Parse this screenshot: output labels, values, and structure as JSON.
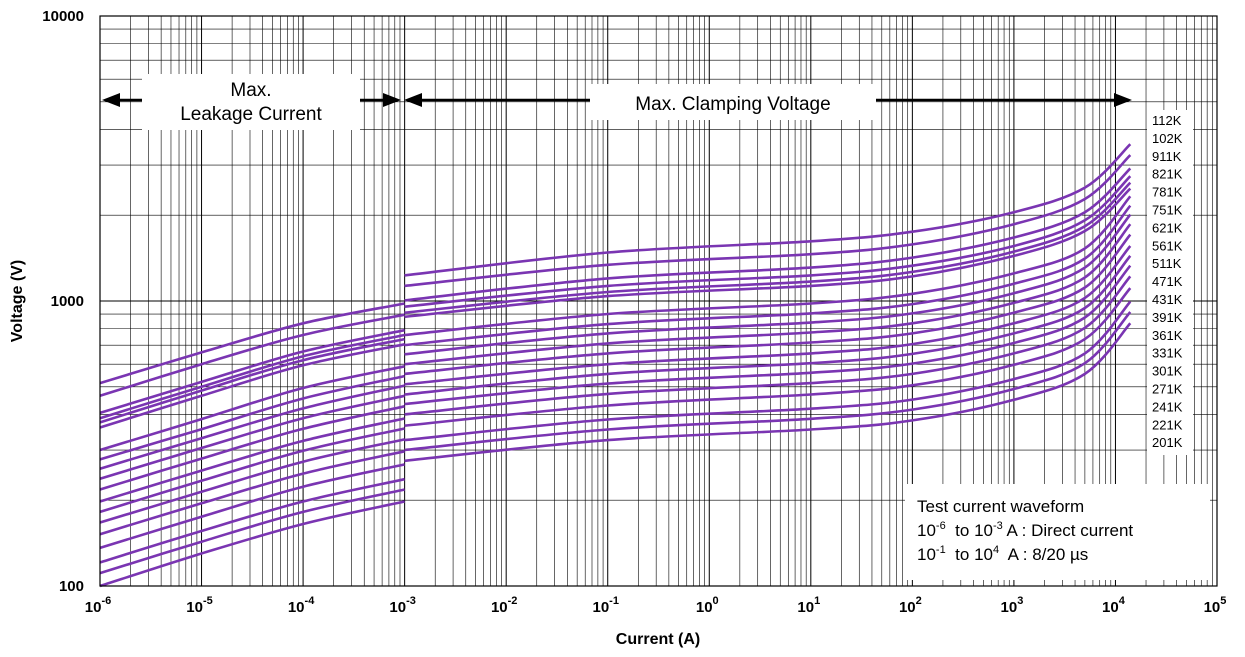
{
  "chart_data": {
    "type": "line",
    "xlabel": "Current (A)",
    "ylabel": "Voltage  (V)",
    "x_scale": "log",
    "y_scale": "log",
    "xlim": [
      1e-06,
      100000
    ],
    "ylim": [
      100,
      10000
    ],
    "grid": true,
    "x_ticks": [
      {
        "base": "10",
        "exp": "-6"
      },
      {
        "base": "10",
        "exp": "-5"
      },
      {
        "base": "10",
        "exp": "-4"
      },
      {
        "base": "10",
        "exp": "-3"
      },
      {
        "base": "10",
        "exp": "-2"
      },
      {
        "base": "10",
        "exp": "-1"
      },
      {
        "base": "10",
        "exp": "0"
      },
      {
        "base": "10",
        "exp": "1"
      },
      {
        "base": "10",
        "exp": "2"
      },
      {
        "base": "10",
        "exp": "3"
      },
      {
        "base": "10",
        "exp": "4"
      },
      {
        "base": "10",
        "exp": "5"
      }
    ],
    "y_ticks": [
      "100",
      "1000",
      "10000"
    ],
    "line_color": "#7a35b2",
    "annotations": {
      "leakage": [
        "Max.",
        "Leakage Current"
      ],
      "clamping": "Max. Clamping Voltage"
    },
    "info_box": {
      "title": "Test current waveform",
      "line1": {
        "a_base": "10",
        "a_exp": "-6",
        "mid": "  to ",
        "b_base": "10",
        "b_exp": "-3",
        "rest": " A : Direct current"
      },
      "line2": {
        "a_base": "10",
        "a_exp": "-1",
        "mid": "  to ",
        "b_base": "10",
        "b_exp": "4",
        "rest": "  A : 8/20 µs"
      }
    },
    "series_labels": [
      "112K",
      "102K",
      "911K",
      "821K",
      "781K",
      "751K",
      "621K",
      "561K",
      "511K",
      "471K",
      "431K",
      "391K",
      "361K",
      "331K",
      "301K",
      "271K",
      "241K",
      "221K",
      "201K"
    ],
    "series": [
      {
        "name": "112K",
        "leakage": [
          [
            1e-06,
            515
          ],
          [
            1e-05,
            660
          ],
          [
            0.0001,
            835
          ],
          [
            0.001,
            980
          ]
        ],
        "clamping": [
          [
            0.001,
            1230
          ],
          [
            0.1,
            1480
          ],
          [
            10,
            1620
          ],
          [
            100,
            1750
          ],
          [
            1000,
            2050
          ],
          [
            5000,
            2500
          ],
          [
            14000,
            3550
          ]
        ]
      },
      {
        "name": "102K",
        "leakage": [
          [
            1e-06,
            465
          ],
          [
            1e-05,
            600
          ],
          [
            0.0001,
            760
          ],
          [
            0.001,
            895
          ]
        ],
        "clamping": [
          [
            0.001,
            1130
          ],
          [
            0.1,
            1340
          ],
          [
            10,
            1460
          ],
          [
            100,
            1580
          ],
          [
            1000,
            1860
          ],
          [
            5000,
            2280
          ],
          [
            14000,
            3250
          ]
        ]
      },
      {
        "name": "911K",
        "leakage": [
          [
            1e-06,
            405
          ],
          [
            1e-05,
            520
          ],
          [
            0.0001,
            665
          ],
          [
            0.001,
            790
          ]
        ],
        "clamping": [
          [
            0.001,
            1005
          ],
          [
            0.1,
            1200
          ],
          [
            10,
            1310
          ],
          [
            100,
            1420
          ],
          [
            1000,
            1670
          ],
          [
            5000,
            2050
          ],
          [
            14000,
            2920
          ]
        ]
      },
      {
        "name": "821K",
        "leakage": [
          [
            1e-06,
            388
          ],
          [
            1e-05,
            500
          ],
          [
            0.0001,
            640
          ],
          [
            0.001,
            760
          ]
        ],
        "clamping": [
          [
            0.001,
            955
          ],
          [
            0.1,
            1130
          ],
          [
            10,
            1230
          ],
          [
            100,
            1330
          ],
          [
            1000,
            1560
          ],
          [
            5000,
            1920
          ],
          [
            14000,
            2740
          ]
        ]
      },
      {
        "name": "781K",
        "leakage": [
          [
            1e-06,
            375
          ],
          [
            1e-05,
            485
          ],
          [
            0.0001,
            620
          ],
          [
            0.001,
            735
          ]
        ],
        "clamping": [
          [
            0.001,
            910
          ],
          [
            0.1,
            1075
          ],
          [
            10,
            1170
          ],
          [
            100,
            1265
          ],
          [
            1000,
            1490
          ],
          [
            5000,
            1830
          ],
          [
            14000,
            2600
          ]
        ]
      },
      {
        "name": "751K",
        "leakage": [
          [
            1e-06,
            360
          ],
          [
            1e-05,
            465
          ],
          [
            0.0001,
            595
          ],
          [
            0.001,
            705
          ]
        ],
        "clamping": [
          [
            0.001,
            880
          ],
          [
            0.1,
            1040
          ],
          [
            10,
            1130
          ],
          [
            100,
            1220
          ],
          [
            1000,
            1440
          ],
          [
            5000,
            1760
          ],
          [
            14000,
            2480
          ]
        ]
      },
      {
        "name": "621K",
        "leakage": [
          [
            1e-06,
            300
          ],
          [
            1e-05,
            385
          ],
          [
            0.0001,
            495
          ],
          [
            0.001,
            590
          ]
        ],
        "clamping": [
          [
            0.001,
            760
          ],
          [
            0.1,
            900
          ],
          [
            10,
            980
          ],
          [
            100,
            1060
          ],
          [
            1000,
            1250
          ],
          [
            5000,
            1530
          ],
          [
            14000,
            2330
          ]
        ]
      },
      {
        "name": "561K",
        "leakage": [
          [
            1e-06,
            278
          ],
          [
            1e-05,
            355
          ],
          [
            0.0001,
            455
          ],
          [
            0.001,
            545
          ]
        ],
        "clamping": [
          [
            0.001,
            700
          ],
          [
            0.1,
            830
          ],
          [
            10,
            905
          ],
          [
            100,
            975
          ],
          [
            1000,
            1150
          ],
          [
            5000,
            1410
          ],
          [
            14000,
            2160
          ]
        ]
      },
      {
        "name": "511K",
        "leakage": [
          [
            1e-06,
            258
          ],
          [
            1e-05,
            330
          ],
          [
            0.0001,
            420
          ],
          [
            0.001,
            505
          ]
        ],
        "clamping": [
          [
            0.001,
            650
          ],
          [
            0.1,
            770
          ],
          [
            10,
            840
          ],
          [
            100,
            905
          ],
          [
            1000,
            1065
          ],
          [
            5000,
            1310
          ],
          [
            14000,
            2010
          ]
        ]
      },
      {
        "name": "471K",
        "leakage": [
          [
            1e-06,
            238
          ],
          [
            1e-05,
            305
          ],
          [
            0.0001,
            388
          ],
          [
            0.001,
            465
          ]
        ],
        "clamping": [
          [
            0.001,
            600
          ],
          [
            0.1,
            710
          ],
          [
            10,
            775
          ],
          [
            100,
            835
          ],
          [
            1000,
            985
          ],
          [
            5000,
            1210
          ],
          [
            14000,
            1860
          ]
        ]
      },
      {
        "name": "431K",
        "leakage": [
          [
            1e-06,
            218
          ],
          [
            1e-05,
            280
          ],
          [
            0.0001,
            356
          ],
          [
            0.001,
            427
          ]
        ],
        "clamping": [
          [
            0.001,
            555
          ],
          [
            0.1,
            655
          ],
          [
            10,
            715
          ],
          [
            100,
            770
          ],
          [
            1000,
            910
          ],
          [
            5000,
            1115
          ],
          [
            14000,
            1710
          ]
        ]
      },
      {
        "name": "391K",
        "leakage": [
          [
            1e-06,
            198
          ],
          [
            1e-05,
            254
          ],
          [
            0.0001,
            323
          ],
          [
            0.001,
            387
          ]
        ],
        "clamping": [
          [
            0.001,
            510
          ],
          [
            0.1,
            600
          ],
          [
            10,
            655
          ],
          [
            100,
            706
          ],
          [
            1000,
            835
          ],
          [
            5000,
            1025
          ],
          [
            14000,
            1560
          ]
        ]
      },
      {
        "name": "361K",
        "leakage": [
          [
            1e-06,
            182
          ],
          [
            1e-05,
            234
          ],
          [
            0.0001,
            298
          ],
          [
            0.001,
            357
          ]
        ],
        "clamping": [
          [
            0.001,
            470
          ],
          [
            0.1,
            555
          ],
          [
            10,
            605
          ],
          [
            100,
            652
          ],
          [
            1000,
            770
          ],
          [
            5000,
            945
          ],
          [
            14000,
            1440
          ]
        ]
      },
      {
        "name": "331K",
        "leakage": [
          [
            1e-06,
            167
          ],
          [
            1e-05,
            214
          ],
          [
            0.0001,
            273
          ],
          [
            0.001,
            327
          ]
        ],
        "clamping": [
          [
            0.001,
            435
          ],
          [
            0.1,
            513
          ],
          [
            10,
            560
          ],
          [
            100,
            603
          ],
          [
            1000,
            712
          ],
          [
            5000,
            875
          ],
          [
            14000,
            1330
          ]
        ]
      },
      {
        "name": "301K",
        "leakage": [
          [
            1e-06,
            152
          ],
          [
            1e-05,
            195
          ],
          [
            0.0001,
            248
          ],
          [
            0.001,
            297
          ]
        ],
        "clamping": [
          [
            0.001,
            400
          ],
          [
            0.1,
            472
          ],
          [
            10,
            515
          ],
          [
            100,
            555
          ],
          [
            1000,
            655
          ],
          [
            5000,
            805
          ],
          [
            14000,
            1220
          ]
        ]
      },
      {
        "name": "271K",
        "leakage": [
          [
            1e-06,
            136
          ],
          [
            1e-05,
            175
          ],
          [
            0.0001,
            223
          ],
          [
            0.001,
            267
          ]
        ],
        "clamping": [
          [
            0.001,
            365
          ],
          [
            0.1,
            430
          ],
          [
            10,
            470
          ],
          [
            100,
            506
          ],
          [
            1000,
            597
          ],
          [
            5000,
            735
          ],
          [
            14000,
            1110
          ]
        ]
      },
      {
        "name": "241K",
        "leakage": [
          [
            1e-06,
            121
          ],
          [
            1e-05,
            156
          ],
          [
            0.0001,
            198
          ],
          [
            0.001,
            237
          ]
        ],
        "clamping": [
          [
            0.001,
            325
          ],
          [
            0.1,
            384
          ],
          [
            10,
            419
          ],
          [
            100,
            451
          ],
          [
            1000,
            532
          ],
          [
            5000,
            655
          ],
          [
            14000,
            995
          ]
        ]
      },
      {
        "name": "221K",
        "leakage": [
          [
            1e-06,
            111
          ],
          [
            1e-05,
            143
          ],
          [
            0.0001,
            182
          ],
          [
            0.001,
            218
          ]
        ],
        "clamping": [
          [
            0.001,
            300
          ],
          [
            0.1,
            354
          ],
          [
            10,
            386
          ],
          [
            100,
            416
          ],
          [
            1000,
            491
          ],
          [
            5000,
            605
          ],
          [
            14000,
            915
          ]
        ]
      },
      {
        "name": "201K",
        "leakage": [
          [
            1e-06,
            100
          ],
          [
            1e-05,
            130
          ],
          [
            0.0001,
            165
          ],
          [
            0.001,
            198
          ]
        ],
        "clamping": [
          [
            0.001,
            275
          ],
          [
            0.1,
            325
          ],
          [
            10,
            354
          ],
          [
            100,
            381
          ],
          [
            1000,
            450
          ],
          [
            5000,
            555
          ],
          [
            14000,
            835
          ]
        ]
      }
    ]
  }
}
